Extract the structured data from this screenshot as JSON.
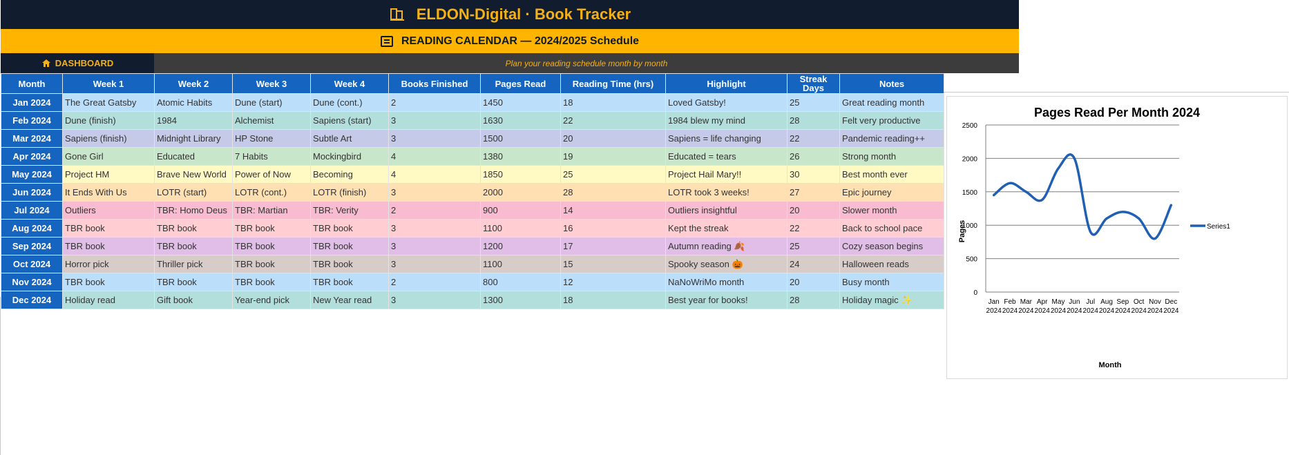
{
  "header": {
    "title": "ELDON-Digital · Book Tracker",
    "subtitle": "READING CALENDAR — 2024/2025 Schedule",
    "dashboard_label": "DASHBOARD",
    "tagline": "Plan your reading schedule month by month"
  },
  "table": {
    "columns": [
      "Month",
      "Week 1",
      "Week 2",
      "Week 3",
      "Week 4",
      "Books Finished",
      "Pages Read",
      "Reading Time (hrs)",
      "Highlight",
      "Streak Days",
      "Notes"
    ],
    "rows": [
      {
        "color": "#bbdefb",
        "cells": [
          "Jan 2024",
          "The Great Gatsby",
          "Atomic Habits",
          "Dune (start)",
          "Dune (cont.)",
          "2",
          "1450",
          "18",
          "Loved Gatsby!",
          "25",
          "Great reading month"
        ]
      },
      {
        "color": "#b2dfdb",
        "cells": [
          "Feb 2024",
          "Dune (finish)",
          "1984",
          "Alchemist",
          "Sapiens (start)",
          "3",
          "1630",
          "22",
          "1984 blew my mind",
          "28",
          "Felt very productive"
        ]
      },
      {
        "color": "#c5cae9",
        "cells": [
          "Mar 2024",
          "Sapiens (finish)",
          "Midnight Library",
          "HP Stone",
          "Subtle Art",
          "3",
          "1500",
          "20",
          "Sapiens = life changing",
          "22",
          "Pandemic reading++"
        ]
      },
      {
        "color": "#c8e6c9",
        "cells": [
          "Apr 2024",
          "Gone Girl",
          "Educated",
          "7 Habits",
          "Mockingbird",
          "4",
          "1380",
          "19",
          "Educated = tears",
          "26",
          "Strong month"
        ]
      },
      {
        "color": "#fff9c4",
        "cells": [
          "May 2024",
          "Project HM",
          "Brave New World",
          "Power of Now",
          "Becoming",
          "4",
          "1850",
          "25",
          "Project Hail Mary!!",
          "30",
          "Best month ever"
        ]
      },
      {
        "color": "#ffe0b2",
        "cells": [
          "Jun 2024",
          "It Ends With Us",
          "LOTR (start)",
          "LOTR (cont.)",
          "LOTR (finish)",
          "3",
          "2000",
          "28",
          "LOTR took 3 weeks!",
          "27",
          "Epic journey"
        ]
      },
      {
        "color": "#f8bbd0",
        "cells": [
          "Jul 2024",
          "Outliers",
          "TBR: Homo Deus",
          "TBR: Martian",
          "TBR: Verity",
          "2",
          "900",
          "14",
          "Outliers insightful",
          "20",
          "Slower month"
        ]
      },
      {
        "color": "#ffcdd2",
        "cells": [
          "Aug 2024",
          "TBR book",
          "TBR book",
          "TBR book",
          "TBR book",
          "3",
          "1100",
          "16",
          "Kept the streak",
          "22",
          "Back to school pace"
        ]
      },
      {
        "color": "#e1bee7",
        "cells": [
          "Sep 2024",
          "TBR book",
          "TBR book",
          "TBR book",
          "TBR book",
          "3",
          "1200",
          "17",
          "Autumn reading 🍂",
          "25",
          "Cozy season begins"
        ]
      },
      {
        "color": "#d7ccc8",
        "cells": [
          "Oct 2024",
          "Horror pick",
          "Thriller pick",
          "TBR book",
          "TBR book",
          "3",
          "1100",
          "15",
          "Spooky season 🎃",
          "24",
          "Halloween reads"
        ]
      },
      {
        "color": "#bbdefb",
        "cells": [
          "Nov 2024",
          "TBR book",
          "TBR book",
          "TBR book",
          "TBR book",
          "2",
          "800",
          "12",
          "NaNoWriMo month",
          "20",
          "Busy month"
        ]
      },
      {
        "color": "#b2dfdb",
        "cells": [
          "Dec 2024",
          "Holiday read",
          "Gift book",
          "Year-end pick",
          "New Year read",
          "3",
          "1300",
          "18",
          "Best year for books!",
          "28",
          "Holiday magic ✨"
        ]
      }
    ]
  },
  "chart_data": {
    "type": "line",
    "title": "Pages Read Per Month 2024",
    "xlabel": "Month",
    "ylabel": "Pages",
    "categories": [
      "Jan 2024",
      "Feb 2024",
      "Mar 2024",
      "Apr 2024",
      "May 2024",
      "Jun 2024",
      "Jul 2024",
      "Aug 2024",
      "Sep 2024",
      "Oct 2024",
      "Nov 2024",
      "Dec 2024"
    ],
    "ylim": [
      0,
      2500
    ],
    "yticks": [
      0,
      500,
      1000,
      1500,
      2000,
      2500
    ],
    "grid": true,
    "legend": "right",
    "series": [
      {
        "name": "Series1",
        "color": "#1f5fb4",
        "values": [
          1450,
          1630,
          1500,
          1380,
          1850,
          2000,
          900,
          1100,
          1200,
          1100,
          800,
          1300
        ]
      }
    ]
  }
}
